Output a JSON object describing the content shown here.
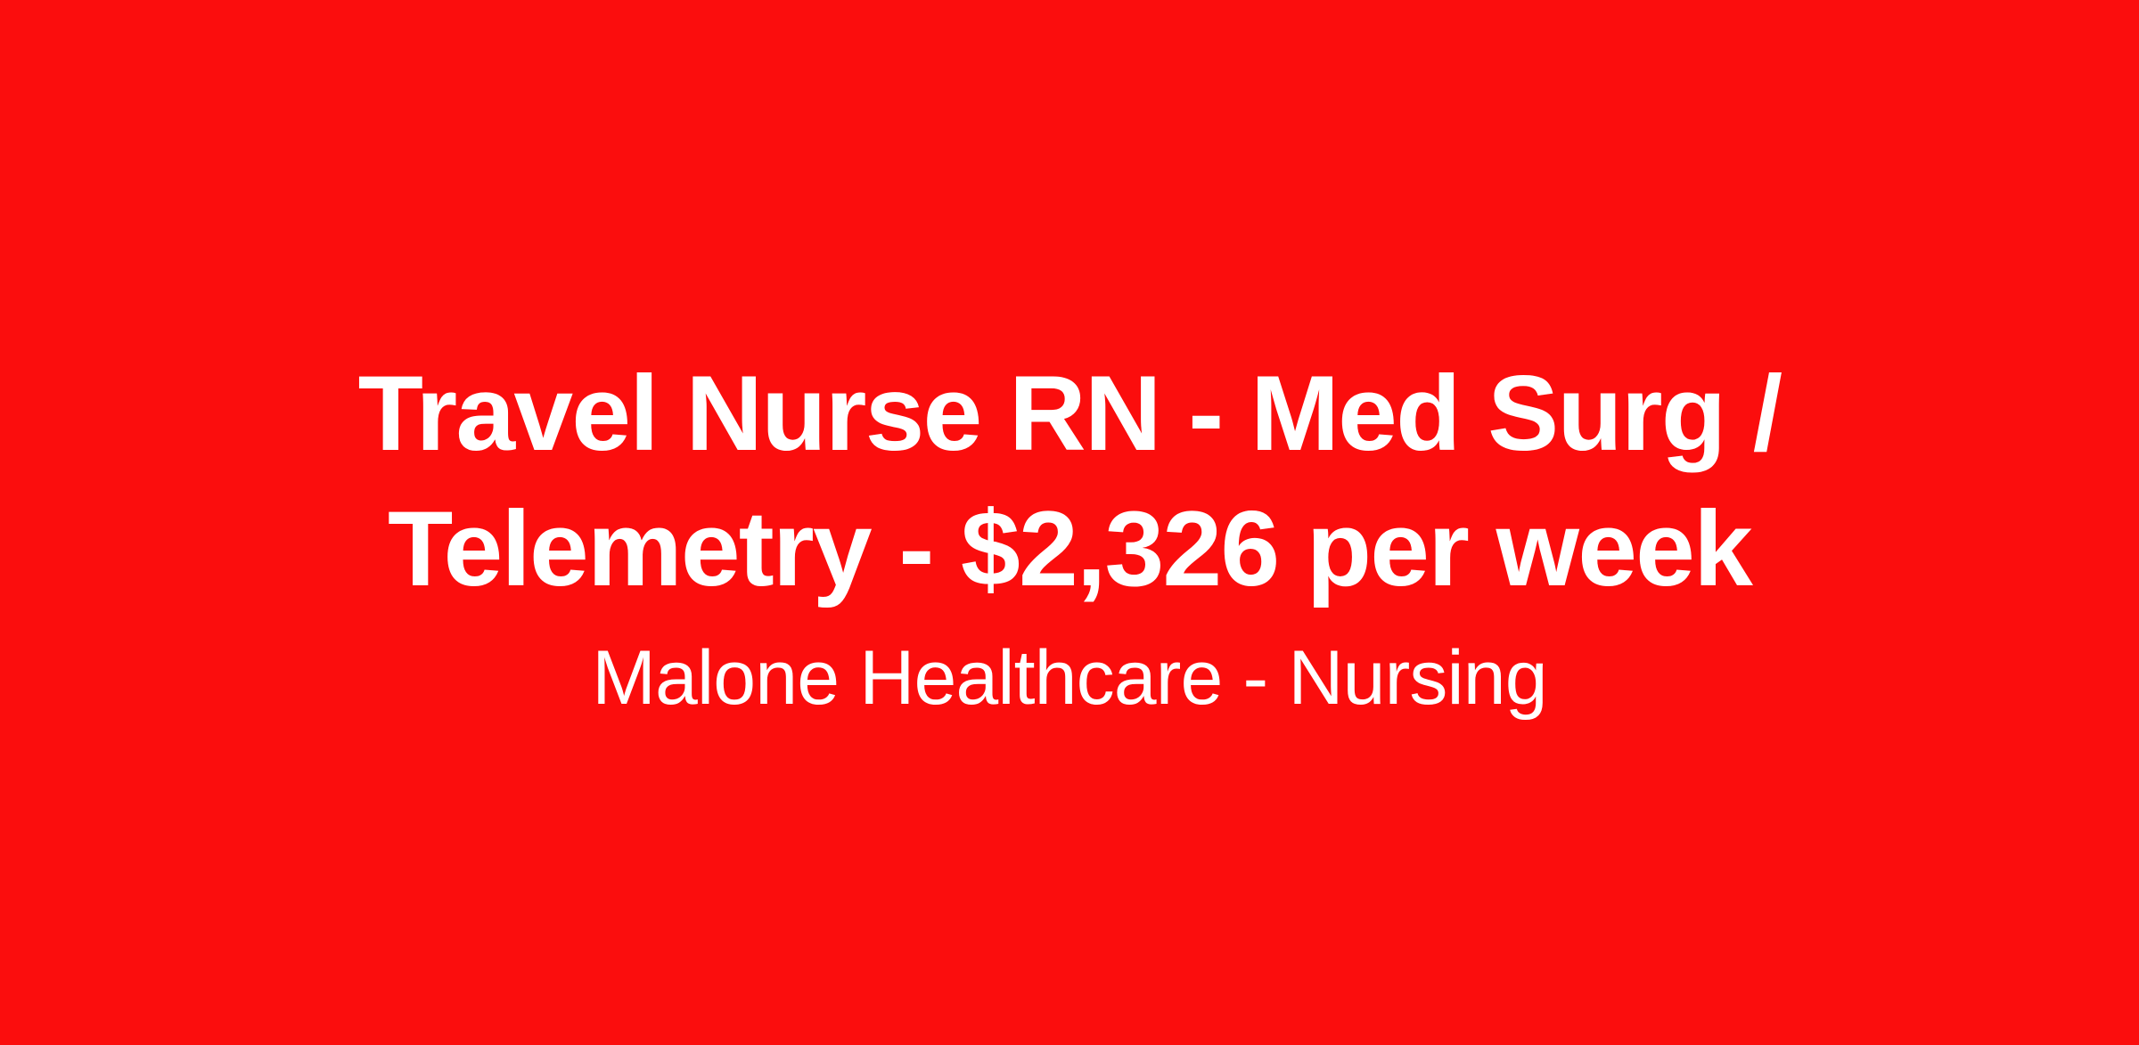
{
  "colors": {
    "background": "#FB0D0D",
    "text": "#FFFFFF"
  },
  "job_card": {
    "title_line_1": "Travel Nurse RN - Med Surg /",
    "title_line_2": "Telemetry - $2,326 per week",
    "title_full": "Travel Nurse RN - Med Surg / Telemetry - $2,326 per week",
    "subtitle": "Malone Healthcare - Nursing"
  }
}
